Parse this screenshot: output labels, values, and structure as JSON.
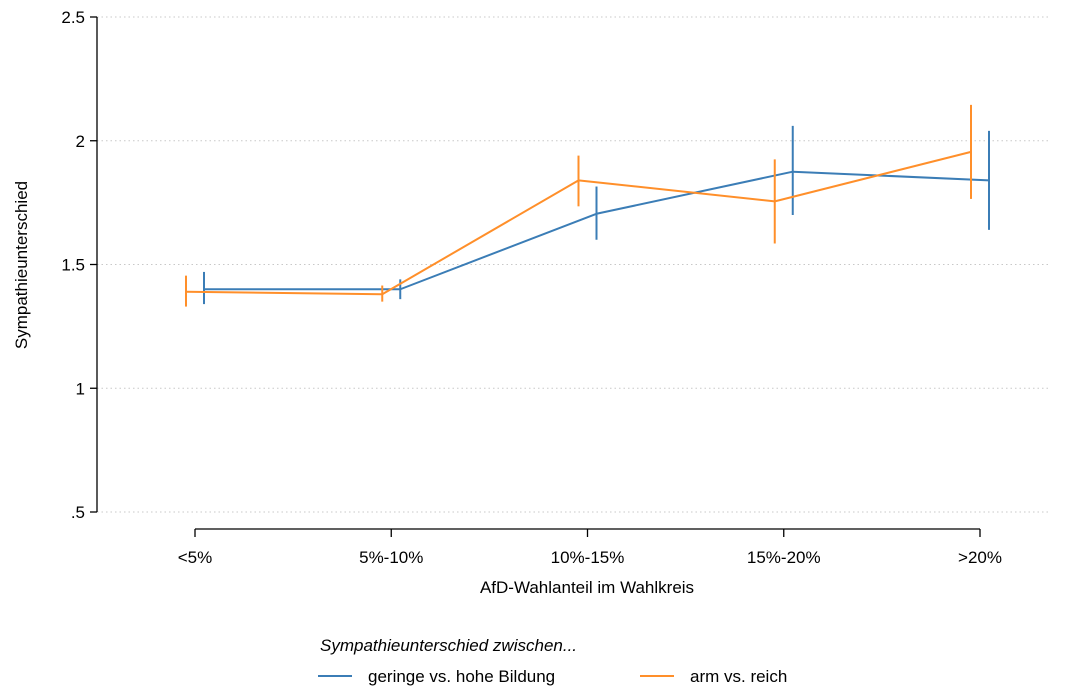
{
  "chart_data": {
    "type": "line",
    "title": "",
    "xlabel": "AfD-Wahlanteil im Wahlkreis",
    "ylabel": "Sympathieunterschied",
    "categories": [
      "<5%",
      "5%-10%",
      "10%-15%",
      "15%-20%",
      ">20%"
    ],
    "ylim": [
      0.5,
      2.5
    ],
    "yticks": [
      0.5,
      1,
      1.5,
      2,
      2.5
    ],
    "ytick_labels": [
      ".5",
      "1",
      "1.5",
      "2",
      "2.5"
    ],
    "grid": "horizontal dotted",
    "legend_placement": "bottom",
    "legend_title": "Sympathieunterschied zwischen...",
    "series": [
      {
        "name": "geringe vs. hohe Bildung",
        "color": "#3b7db6",
        "values": [
          1.4,
          1.4,
          1.705,
          1.875,
          1.84
        ],
        "ci_low": [
          1.34,
          1.36,
          1.6,
          1.7,
          1.64
        ],
        "ci_high": [
          1.47,
          1.44,
          1.815,
          2.06,
          2.04
        ]
      },
      {
        "name": "arm vs. reich",
        "color": "#ff8f2a",
        "values": [
          1.39,
          1.38,
          1.84,
          1.755,
          1.955
        ],
        "ci_low": [
          1.33,
          1.35,
          1.735,
          1.585,
          1.765
        ],
        "ci_high": [
          1.455,
          1.415,
          1.94,
          1.925,
          2.145
        ]
      }
    ]
  }
}
